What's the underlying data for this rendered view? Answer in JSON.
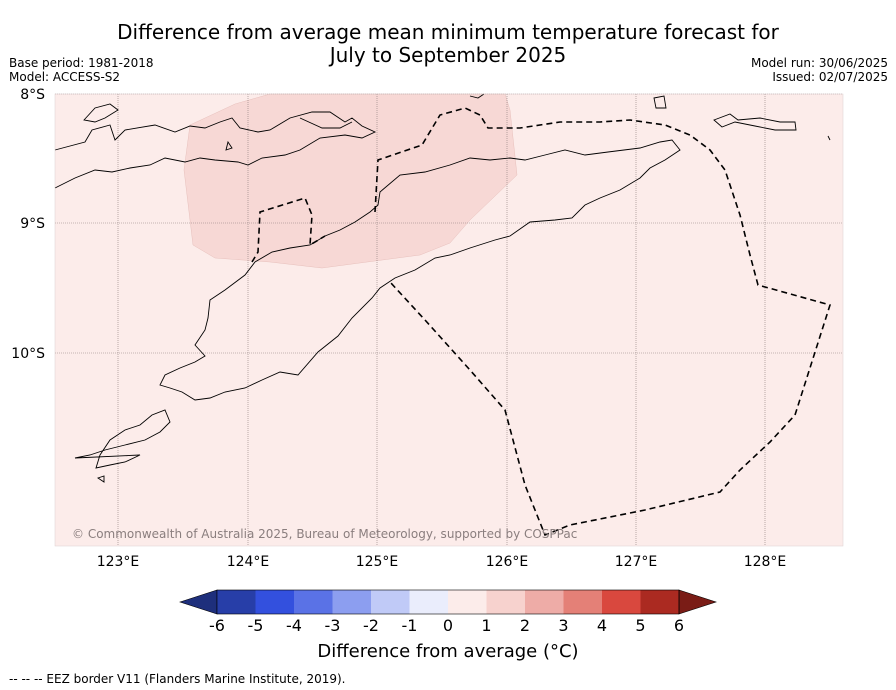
{
  "title_line1": "Difference from average mean minimum temperature forecast for",
  "title_line2": "July to September 2025",
  "base_period": "Base period: 1981-2018",
  "model": "Model: ACCESS-S2",
  "model_run": "Model run: 30/06/2025",
  "issued": "Issued: 02/07/2025",
  "lat_labels": [
    "8°S",
    "9°S",
    "10°S"
  ],
  "lon_labels": [
    "123°E",
    "124°E",
    "125°E",
    "126°E",
    "127°E",
    "128°E"
  ],
  "copyright": "© Commonwealth of Australia 2025, Bureau of Meteorology, supported by COSPPac",
  "colorbar": {
    "ticks": [
      "-6",
      "-5",
      "-4",
      "-3",
      "-2",
      "-1",
      "0",
      "1",
      "2",
      "3",
      "4",
      "5",
      "6"
    ],
    "colors": [
      "#1e2f7c",
      "#273ea8",
      "#3350de",
      "#5a72e6",
      "#8c9ef0",
      "#c0caf7",
      "#eaedfc",
      "#fcecea",
      "#f7d2ce",
      "#eeaca7",
      "#e48077",
      "#d9483e",
      "#ab2a21",
      "#7a1c16"
    ],
    "label": "Difference from average (°C)"
  },
  "legend_note": "-- -- -- EEZ border V11 (Flanders Marine Institute, 2019).",
  "colors": {
    "background_anomaly": "#fcecea",
    "anomaly_1_2": "#f7d8d5"
  }
}
